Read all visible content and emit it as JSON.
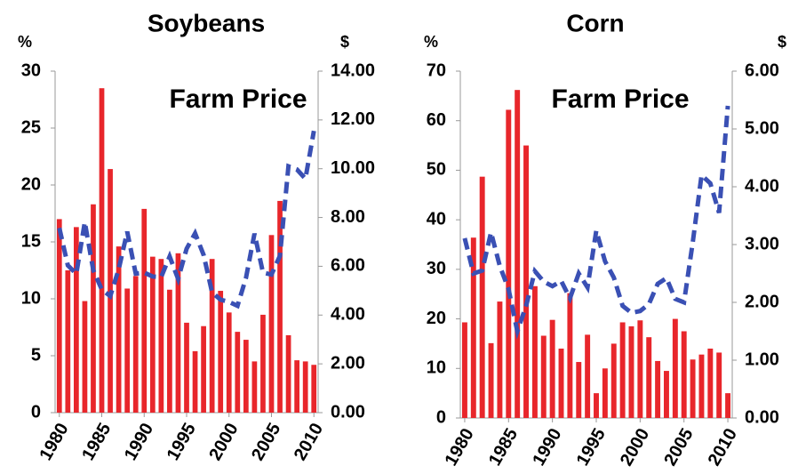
{
  "chart_data": [
    {
      "type": "combo",
      "title": "Soybeans",
      "annotation": "Farm Price",
      "y_label": "%",
      "y2_label": "$",
      "x": [
        1980,
        1981,
        1982,
        1983,
        1984,
        1985,
        1986,
        1987,
        1988,
        1989,
        1990,
        1991,
        1992,
        1993,
        1994,
        1995,
        1996,
        1997,
        1998,
        1999,
        2000,
        2001,
        2002,
        2003,
        2004,
        2005,
        2006,
        2007,
        2008,
        2009,
        2010
      ],
      "xlim": [
        1979.5,
        2010.5
      ],
      "xticks": [
        1980,
        1985,
        1990,
        1995,
        2000,
        2005,
        2010
      ],
      "ylim": [
        0,
        30
      ],
      "yticks": [
        0,
        5,
        10,
        15,
        20,
        25,
        30
      ],
      "y2lim": [
        0,
        14
      ],
      "y2ticks": [
        {
          "value": 0,
          "label": "0.00"
        },
        {
          "value": 2,
          "label": "2.00"
        },
        {
          "value": 4,
          "label": "4.00"
        },
        {
          "value": 6,
          "label": "6.00"
        },
        {
          "value": 8,
          "label": "8.00"
        },
        {
          "value": 10,
          "label": "10.00"
        },
        {
          "value": 12,
          "label": "12.00"
        },
        {
          "value": 14,
          "label": "14.00"
        }
      ],
      "series": [
        {
          "type": "bar",
          "color": "#e8262b",
          "values": [
            17,
            12.5,
            16.3,
            9.8,
            18.3,
            28.5,
            21.4,
            14.6,
            10.9,
            12,
            17.9,
            13.7,
            13.5,
            10.8,
            14,
            7.9,
            5.4,
            7.6,
            13.5,
            10.7,
            8.8,
            7.1,
            6.4,
            4.5,
            8.6,
            15.6,
            18.6,
            6.8,
            4.6,
            4.5,
            4.2
          ]
        },
        {
          "type": "line",
          "axis": "y2",
          "color": "#3a50b4",
          "line_style": "dashed",
          "values": [
            7.57,
            6.04,
            5.69,
            7.81,
            5.84,
            5.05,
            4.78,
            5.88,
            7.42,
            5.7,
            5.74,
            5.58,
            5.56,
            6.4,
            5.48,
            6.72,
            7.35,
            6.47,
            4.93,
            4.63,
            4.54,
            4.38,
            5.53,
            7.34,
            5.74,
            5.66,
            6.43,
            10.1,
            9.97,
            9.59,
            11.55
          ]
        }
      ]
    },
    {
      "type": "combo",
      "title": "Corn",
      "annotation": "Farm Price",
      "y_label": "%",
      "y2_label": "$",
      "x": [
        1980,
        1981,
        1982,
        1983,
        1984,
        1985,
        1986,
        1987,
        1988,
        1989,
        1990,
        1991,
        1992,
        1993,
        1994,
        1995,
        1996,
        1997,
        1998,
        1999,
        2000,
        2001,
        2002,
        2003,
        2004,
        2005,
        2006,
        2007,
        2008,
        2009,
        2010
      ],
      "xlim": [
        1979.5,
        2010.5
      ],
      "xticks": [
        1980,
        1985,
        1990,
        1995,
        2000,
        2005,
        2010
      ],
      "ylim": [
        0,
        70
      ],
      "yticks": [
        0,
        10,
        20,
        30,
        40,
        50,
        60,
        70
      ],
      "y2lim": [
        0,
        6
      ],
      "y2ticks": [
        {
          "value": 0,
          "label": "0.00"
        },
        {
          "value": 1,
          "label": "1.00"
        },
        {
          "value": 2,
          "label": "2.00"
        },
        {
          "value": 3,
          "label": "3.00"
        },
        {
          "value": 4,
          "label": "4.00"
        },
        {
          "value": 5,
          "label": "5.00"
        },
        {
          "value": 6,
          "label": "6.00"
        }
      ],
      "series": [
        {
          "type": "bar",
          "color": "#e8262b",
          "values": [
            19.3,
            36.4,
            48.7,
            15.1,
            23.5,
            62.2,
            66.2,
            55,
            26.6,
            16.6,
            19.8,
            14,
            25.2,
            11.3,
            16.8,
            5,
            10,
            15,
            19.3,
            18.5,
            19.7,
            16.3,
            11.5,
            9.5,
            20,
            17.5,
            11.8,
            12.8,
            14,
            13.2,
            5
          ]
        },
        {
          "type": "line",
          "axis": "y2",
          "color": "#3a50b4",
          "line_style": "dashed",
          "values": [
            3.11,
            2.5,
            2.55,
            3.21,
            2.63,
            2.23,
            1.5,
            1.94,
            2.54,
            2.36,
            2.28,
            2.37,
            2.07,
            2.5,
            2.26,
            3.24,
            2.71,
            2.43,
            1.94,
            1.82,
            1.85,
            1.97,
            2.32,
            2.42,
            2.06,
            2.0,
            3.04,
            4.2,
            4.06,
            3.55,
            5.4
          ]
        }
      ]
    }
  ]
}
